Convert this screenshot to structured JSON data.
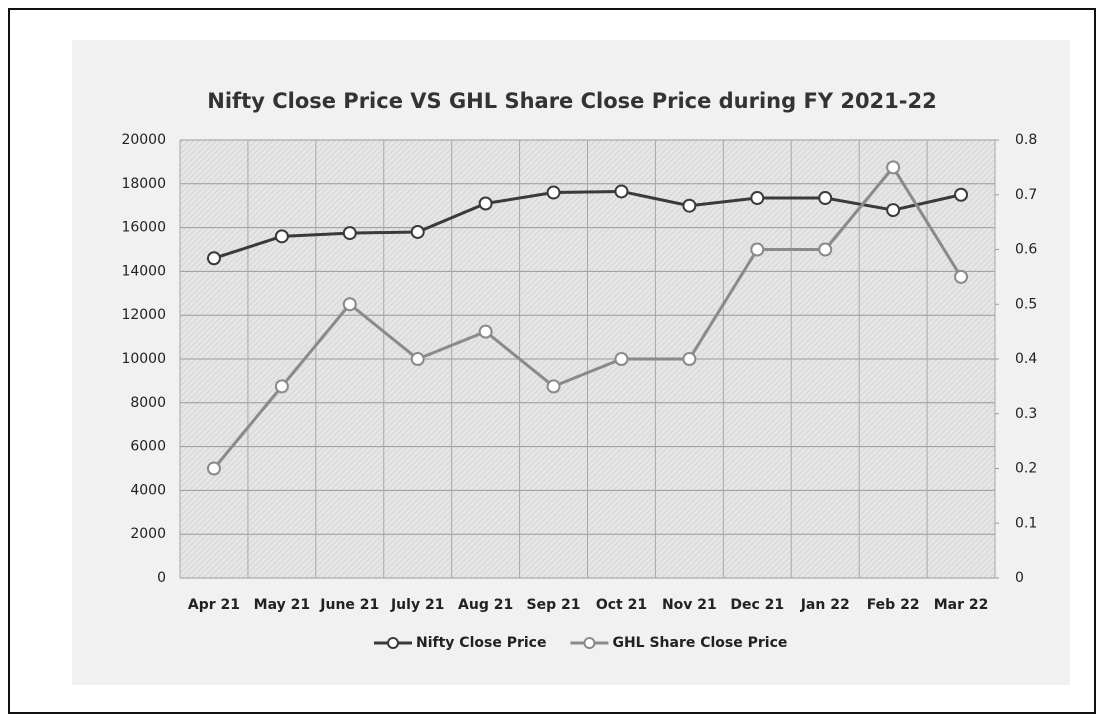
{
  "chart_data": {
    "type": "line",
    "title": "Nifty Close Price VS GHL Share Close Price during FY 2021-22",
    "categories": [
      "Apr 21",
      "May 21",
      "June 21",
      "July 21",
      "Aug 21",
      "Sep 21",
      "Oct 21",
      "Nov 21",
      "Dec 21",
      "Jan 22",
      "Feb  22",
      "Mar  22"
    ],
    "series": [
      {
        "name": "Nifty Close Price",
        "color": "#3a3a3a",
        "values": [
          14600,
          15600,
          15750,
          15800,
          17100,
          17600,
          17650,
          17000,
          17350,
          17350,
          16800,
          17500
        ]
      },
      {
        "name": "GHL Share Close Price",
        "color": "#8a8a8a",
        "axis": "y2",
        "values": [
          0.2,
          0.35,
          0.5,
          0.4,
          0.45,
          0.35,
          0.4,
          0.4,
          0.6,
          0.6,
          0.75,
          0.55
        ]
      }
    ],
    "ylim": [
      0,
      20000
    ],
    "yticks": [
      0,
      2000,
      4000,
      6000,
      8000,
      10000,
      12000,
      14000,
      16000,
      18000,
      20000
    ],
    "y2lim": [
      0,
      0.8
    ],
    "y2ticks": [
      0,
      0.1,
      0.2,
      0.3,
      0.4,
      0.5,
      0.6,
      0.7,
      0.8
    ],
    "grid": true,
    "legend": "bottom"
  }
}
